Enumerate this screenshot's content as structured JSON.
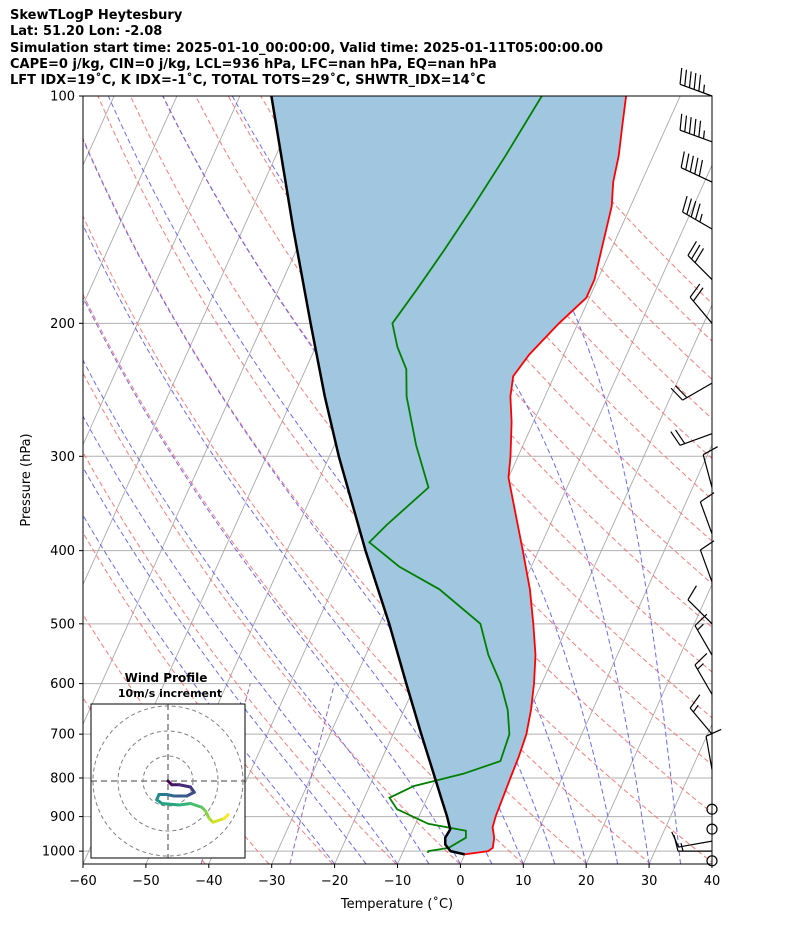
{
  "header": {
    "lines": [
      "SkewTLogP Heytesbury",
      "Lat: 51.20   Lon: -2.08",
      "Simulation start time: 2025-01-10_00:00:00, Valid time: 2025-01-11T05:00:00.00",
      "CAPE=0 j/kg, CIN=0 j/kg, LCL=936 hPa, LFC=nan hPa, EQ=nan hPa",
      "LFT IDX=19˚C, K IDX=-1˚C, TOTAL TOTS=29˚C, SHWTR_IDX=14˚C"
    ]
  },
  "chart_data": [
    {
      "type": "line",
      "subtype": "skew-t log-p",
      "xlabel": "Temperature (˚C)",
      "ylabel": "Pressure (hPa)",
      "xlim": [
        -60,
        40
      ],
      "ylim": [
        1040,
        100
      ],
      "y_scale": "log",
      "x_ticks": [
        -60,
        -50,
        -40,
        -30,
        -20,
        -10,
        0,
        10,
        20,
        30,
        40
      ],
      "x_tick_labels": [
        "−60",
        "−50",
        "−40",
        "−30",
        "−20",
        "−10",
        "0",
        "10",
        "20",
        "30",
        "40"
      ],
      "y_ticks": [
        1000,
        900,
        800,
        700,
        600,
        500,
        400,
        300,
        200,
        100
      ],
      "y_tick_labels": [
        "1000",
        "900",
        "800",
        "700",
        "600",
        "500",
        "400",
        "300",
        "200",
        "100"
      ],
      "grid": true,
      "colors": {
        "temperature": "#ff0000",
        "dewpoint": "#008000",
        "parcel": "#000000",
        "fill": "#a1c6e0",
        "dry_adiabats": "#ff6b6b",
        "moist_adiabats": "#5a5aff",
        "mixing_ratio": "#9467bd",
        "isotherms": "#aaaaaa"
      },
      "series": [
        {
          "role": "temperature",
          "points": [
            [
              1010,
              0.0
            ],
            [
              1000,
              3.5
            ],
            [
              990,
              4.0
            ],
            [
              960,
              3.5
            ],
            [
              930,
              2.5
            ],
            [
              900,
              2.2
            ],
            [
              850,
              2.0
            ],
            [
              800,
              1.8
            ],
            [
              750,
              1.6
            ],
            [
              700,
              1.2
            ],
            [
              650,
              0.2
            ],
            [
              600,
              -1.2
            ],
            [
              550,
              -3.0
            ],
            [
              500,
              -5.6
            ],
            [
              450,
              -8.6
            ],
            [
              400,
              -12.5
            ],
            [
              350,
              -17.0
            ],
            [
              320,
              -20.0
            ],
            [
              300,
              -21.2
            ],
            [
              270,
              -23.5
            ],
            [
              250,
              -25.5
            ],
            [
              235,
              -26.5
            ],
            [
              220,
              -25.5
            ],
            [
              200,
              -23.0
            ],
            [
              185,
              -20.5
            ],
            [
              175,
              -20.5
            ],
            [
              160,
              -21.5
            ],
            [
              140,
              -23.0
            ],
            [
              130,
              -24.5
            ],
            [
              120,
              -25.5
            ],
            [
              110,
              -27.0
            ],
            [
              100,
              -28.6
            ]
          ]
        },
        {
          "role": "dewpoint",
          "points": [
            [
              1005,
              -6.0
            ],
            [
              1000,
              -6.0
            ],
            [
              995,
              -4.5
            ],
            [
              990,
              -3.0
            ],
            [
              960,
              -1.0
            ],
            [
              940,
              -1.5
            ],
            [
              920,
              -8.0
            ],
            [
              880,
              -14.0
            ],
            [
              850,
              -16.0
            ],
            [
              820,
              -13.0
            ],
            [
              790,
              -6.0
            ],
            [
              760,
              -1.0
            ],
            [
              700,
              -1.5
            ],
            [
              650,
              -3.5
            ],
            [
              600,
              -6.5
            ],
            [
              550,
              -10.5
            ],
            [
              500,
              -14.0
            ],
            [
              450,
              -23.0
            ],
            [
              420,
              -31.0
            ],
            [
              390,
              -37.5
            ],
            [
              370,
              -36.0
            ],
            [
              330,
              -32.0
            ],
            [
              290,
              -37.0
            ],
            [
              250,
              -42.0
            ],
            [
              230,
              -44.0
            ],
            [
              215,
              -47.0
            ],
            [
              200,
              -49.5
            ],
            [
              180,
              -48.0
            ],
            [
              160,
              -46.5
            ],
            [
              140,
              -45.0
            ],
            [
              120,
              -43.5
            ],
            [
              100,
              -42.0
            ]
          ]
        },
        {
          "role": "parcel",
          "points": [
            [
              1010,
              0.0
            ],
            [
              1000,
              -2.5
            ],
            [
              980,
              -3.8
            ],
            [
              960,
              -4.3
            ],
            [
              936,
              -4.1
            ],
            [
              900,
              -5.5
            ],
            [
              850,
              -7.8
            ],
            [
              800,
              -10.2
            ],
            [
              700,
              -15.5
            ],
            [
              600,
              -21.5
            ],
            [
              500,
              -28.5
            ],
            [
              400,
              -37.5
            ],
            [
              300,
              -48.5
            ],
            [
              250,
              -55.0
            ],
            [
              200,
              -62.5
            ],
            [
              150,
              -72.0
            ],
            [
              100,
              -85.0
            ]
          ]
        }
      ]
    },
    {
      "type": "scatter",
      "subtype": "hodograph",
      "title": "Wind Profile",
      "subtitle": "10m/s increment",
      "rings": 3,
      "points": [
        [
          0,
          0
        ],
        [
          0.5,
          -0.5
        ],
        [
          1.5,
          -0.5
        ],
        [
          3.0,
          -0.8
        ],
        [
          3.5,
          -1.5
        ],
        [
          2.5,
          -2.0
        ],
        [
          0.8,
          -2.0
        ],
        [
          -0.2,
          -1.8
        ],
        [
          -1.2,
          -1.8
        ],
        [
          -1.5,
          -2.5
        ],
        [
          -0.8,
          -3.0
        ],
        [
          1.5,
          -3.2
        ],
        [
          3.0,
          -3.0
        ],
        [
          4.5,
          -3.5
        ],
        [
          5.0,
          -4.0
        ],
        [
          5.5,
          -5.0
        ],
        [
          6.0,
          -5.5
        ],
        [
          7.5,
          -5.0
        ],
        [
          8.0,
          -4.5
        ]
      ]
    }
  ],
  "barbs": [
    {
      "p": 100,
      "dir": 290,
      "spd": 55
    },
    {
      "p": 115,
      "dir": 290,
      "spd": 55
    },
    {
      "p": 130,
      "dir": 295,
      "spd": 50
    },
    {
      "p": 150,
      "dir": 300,
      "spd": 45
    },
    {
      "p": 175,
      "dir": 315,
      "spd": 30
    },
    {
      "p": 200,
      "dir": 320,
      "spd": 20
    },
    {
      "p": 240,
      "dir": 240,
      "spd": 20
    },
    {
      "p": 280,
      "dir": 250,
      "spd": 20
    },
    {
      "p": 330,
      "dir": 345,
      "spd": 10
    },
    {
      "p": 380,
      "dir": 340,
      "spd": 10
    },
    {
      "p": 440,
      "dir": 340,
      "spd": 10
    },
    {
      "p": 500,
      "dir": 315,
      "spd": 10
    },
    {
      "p": 550,
      "dir": 330,
      "spd": 15
    },
    {
      "p": 620,
      "dir": 330,
      "spd": 15
    },
    {
      "p": 700,
      "dir": 320,
      "spd": 15
    },
    {
      "p": 780,
      "dir": 350,
      "spd": 10
    },
    {
      "p": 880,
      "dir": 0,
      "spd": 0
    },
    {
      "p": 935,
      "dir": 0,
      "spd": 0
    },
    {
      "p": 970,
      "dir": 260,
      "spd": 10
    },
    {
      "p": 1000,
      "dir": 270,
      "spd": 15
    },
    {
      "p": 1030,
      "dir": 0,
      "spd": 0
    }
  ]
}
